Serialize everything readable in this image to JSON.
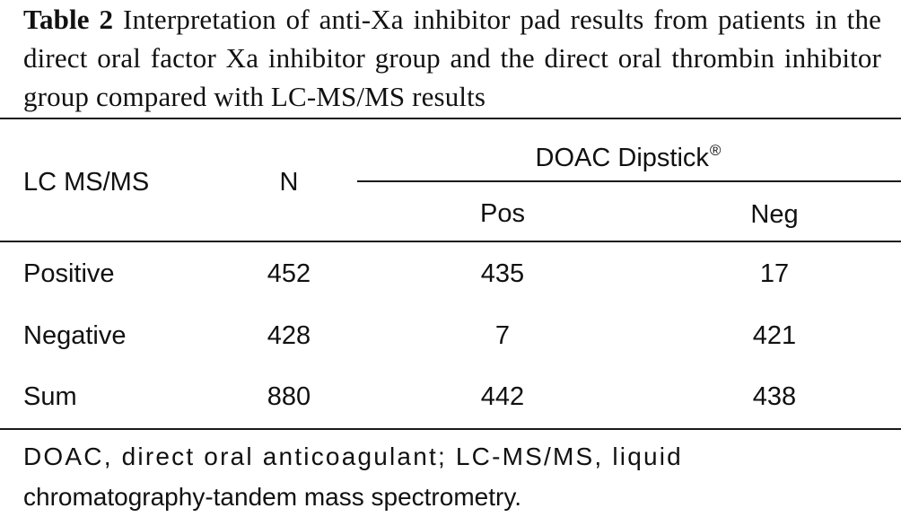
{
  "caption": {
    "label": "Table 2",
    "text": "Interpretation of anti-Xa inhibitor pad results from patients in the direct oral factor Xa inhibitor group and the direct oral thrombin inhibitor group compared with LC-MS/MS results"
  },
  "table": {
    "header": {
      "row_label": "LC MS/MS",
      "n_label": "N",
      "group_label": "DOAC Dipstick",
      "group_mark": "®",
      "pos_label": "Pos",
      "neg_label": "Neg"
    },
    "rows": [
      {
        "label": "Positive",
        "n": "452",
        "pos": "435",
        "neg": "17"
      },
      {
        "label": "Negative",
        "n": "428",
        "pos": "7",
        "neg": "421"
      },
      {
        "label": "Sum",
        "n": "880",
        "pos": "442",
        "neg": "438"
      }
    ]
  },
  "footnote": {
    "line1": "DOAC, direct oral anticoagulant; LC-MS/MS, liquid",
    "line2": "chromatography-tandem mass spectrometry."
  }
}
